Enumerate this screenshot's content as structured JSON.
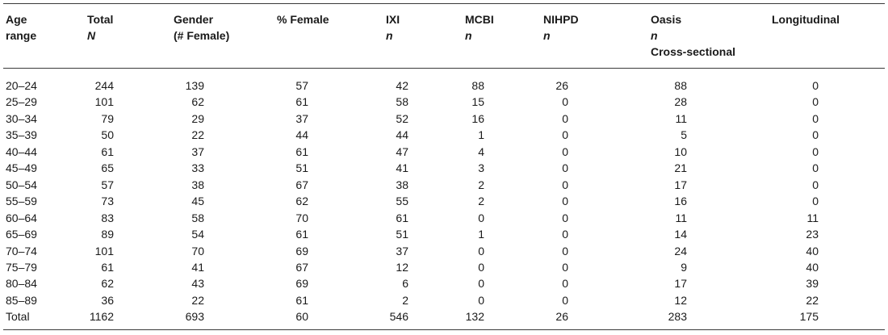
{
  "columns": [
    {
      "lines": [
        "Age",
        "range"
      ],
      "italic": [
        false,
        false
      ]
    },
    {
      "lines": [
        "Total",
        "N"
      ],
      "italic": [
        false,
        true
      ]
    },
    {
      "lines": [
        "Gender",
        "(# Female)"
      ],
      "italic": [
        false,
        false
      ]
    },
    {
      "lines": [
        "% Female"
      ],
      "italic": [
        false
      ]
    },
    {
      "lines": [
        "IXI",
        "n"
      ],
      "italic": [
        false,
        true
      ]
    },
    {
      "lines": [
        "MCBI",
        "n"
      ],
      "italic": [
        false,
        true
      ]
    },
    {
      "lines": [
        "NIHPD",
        "n"
      ],
      "italic": [
        false,
        true
      ]
    },
    {
      "lines": [
        "Oasis",
        "n",
        "Cross-sectional"
      ],
      "italic": [
        false,
        true,
        false
      ]
    },
    {
      "lines": [
        "Longitudinal"
      ],
      "italic": [
        false
      ]
    }
  ],
  "rows": [
    [
      "20–24",
      "244",
      "139",
      "57",
      "42",
      "88",
      "26",
      "88",
      "0"
    ],
    [
      "25–29",
      "101",
      "62",
      "61",
      "58",
      "15",
      "0",
      "28",
      "0"
    ],
    [
      "30–34",
      "79",
      "29",
      "37",
      "52",
      "16",
      "0",
      "11",
      "0"
    ],
    [
      "35–39",
      "50",
      "22",
      "44",
      "44",
      "1",
      "0",
      "5",
      "0"
    ],
    [
      "40–44",
      "61",
      "37",
      "61",
      "47",
      "4",
      "0",
      "10",
      "0"
    ],
    [
      "45–49",
      "65",
      "33",
      "51",
      "41",
      "3",
      "0",
      "21",
      "0"
    ],
    [
      "50–54",
      "57",
      "38",
      "67",
      "38",
      "2",
      "0",
      "17",
      "0"
    ],
    [
      "55–59",
      "73",
      "45",
      "62",
      "55",
      "2",
      "0",
      "16",
      "0"
    ],
    [
      "60–64",
      "83",
      "58",
      "70",
      "61",
      "0",
      "0",
      "11",
      "11"
    ],
    [
      "65–69",
      "89",
      "54",
      "61",
      "51",
      "1",
      "0",
      "14",
      "23"
    ],
    [
      "70–74",
      "101",
      "70",
      "69",
      "37",
      "0",
      "0",
      "24",
      "40"
    ],
    [
      "75–79",
      "61",
      "41",
      "67",
      "12",
      "0",
      "0",
      "9",
      "40"
    ],
    [
      "80–84",
      "62",
      "43",
      "69",
      "6",
      "0",
      "0",
      "17",
      "39"
    ],
    [
      "85–89",
      "36",
      "22",
      "61",
      "2",
      "0",
      "0",
      "12",
      "22"
    ],
    [
      "Total",
      "1162",
      "693",
      "60",
      "546",
      "132",
      "26",
      "283",
      "175"
    ]
  ]
}
